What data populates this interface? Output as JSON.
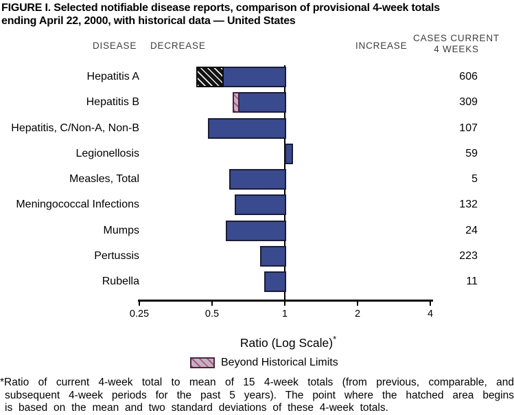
{
  "title": {
    "line1": "FIGURE I. Selected notifiable disease reports, comparison of provisional 4-week totals",
    "line2": "ending April 22, 2000, with historical data — United States"
  },
  "headers": {
    "disease": "DISEASE",
    "decrease": "DECREASE",
    "increase": "INCREASE",
    "cases_line1": "CASES CURRENT",
    "cases_line2": "4 WEEKS"
  },
  "chart_data": {
    "type": "bar",
    "orientation": "horizontal",
    "scale": "log",
    "baseline": 1,
    "xlim": [
      0.25,
      4
    ],
    "grid": false,
    "axis_ticks": [
      "0.25",
      "0.5",
      "1",
      "2",
      "4"
    ],
    "xlabel": "Ratio (Log Scale)",
    "xlabel_sup": "*",
    "rows": [
      {
        "disease": "Hepatitis A",
        "cases": "606",
        "ratio": 0.43,
        "beyond_limits": true,
        "hatch_to": 0.55,
        "hatch_style": "dark"
      },
      {
        "disease": "Hepatitis B",
        "cases": "309",
        "ratio": 0.61,
        "beyond_limits": true,
        "hatch_to": 0.64,
        "hatch_style": "pink"
      },
      {
        "disease": "Hepatitis, C/Non-A, Non-B",
        "cases": "107",
        "ratio": 0.48,
        "beyond_limits": false
      },
      {
        "disease": "Legionellosis",
        "cases": "59",
        "ratio": 1.07,
        "beyond_limits": false
      },
      {
        "disease": "Measles, Total",
        "cases": "5",
        "ratio": 0.59,
        "beyond_limits": false
      },
      {
        "disease": "Meningococcal Infections",
        "cases": "132",
        "ratio": 0.62,
        "beyond_limits": false
      },
      {
        "disease": "Mumps",
        "cases": "24",
        "ratio": 0.57,
        "beyond_limits": false
      },
      {
        "disease": "Pertussis",
        "cases": "223",
        "ratio": 0.79,
        "beyond_limits": false
      },
      {
        "disease": "Rubella",
        "cases": "11",
        "ratio": 0.82,
        "beyond_limits": false
      }
    ],
    "legend": [
      {
        "label": "Beyond Historical Limits",
        "swatch": "pink-hatched"
      }
    ],
    "legend_position": "bottom"
  },
  "colors": {
    "bar_fill": "#3a4a8e",
    "bar_border": "#1c1c35",
    "hatch_dark_bg": "#141414",
    "hatch_pink_bg": "#c9afb9",
    "hatch_pink_stripe": "#b1509c",
    "legend_border": "#4a2545",
    "axis": "#000000",
    "header_text": "#3d3d3d"
  },
  "footnote": {
    "line1": "*Ratio of current 4-week total to mean of 15 4-week totals (from previous, comparable, and",
    "line2": "subsequent 4-week periods for the past 5 years). The point where the hatched area begins",
    "line3": "is based on the mean and two standard deviations of these 4-week totals."
  }
}
